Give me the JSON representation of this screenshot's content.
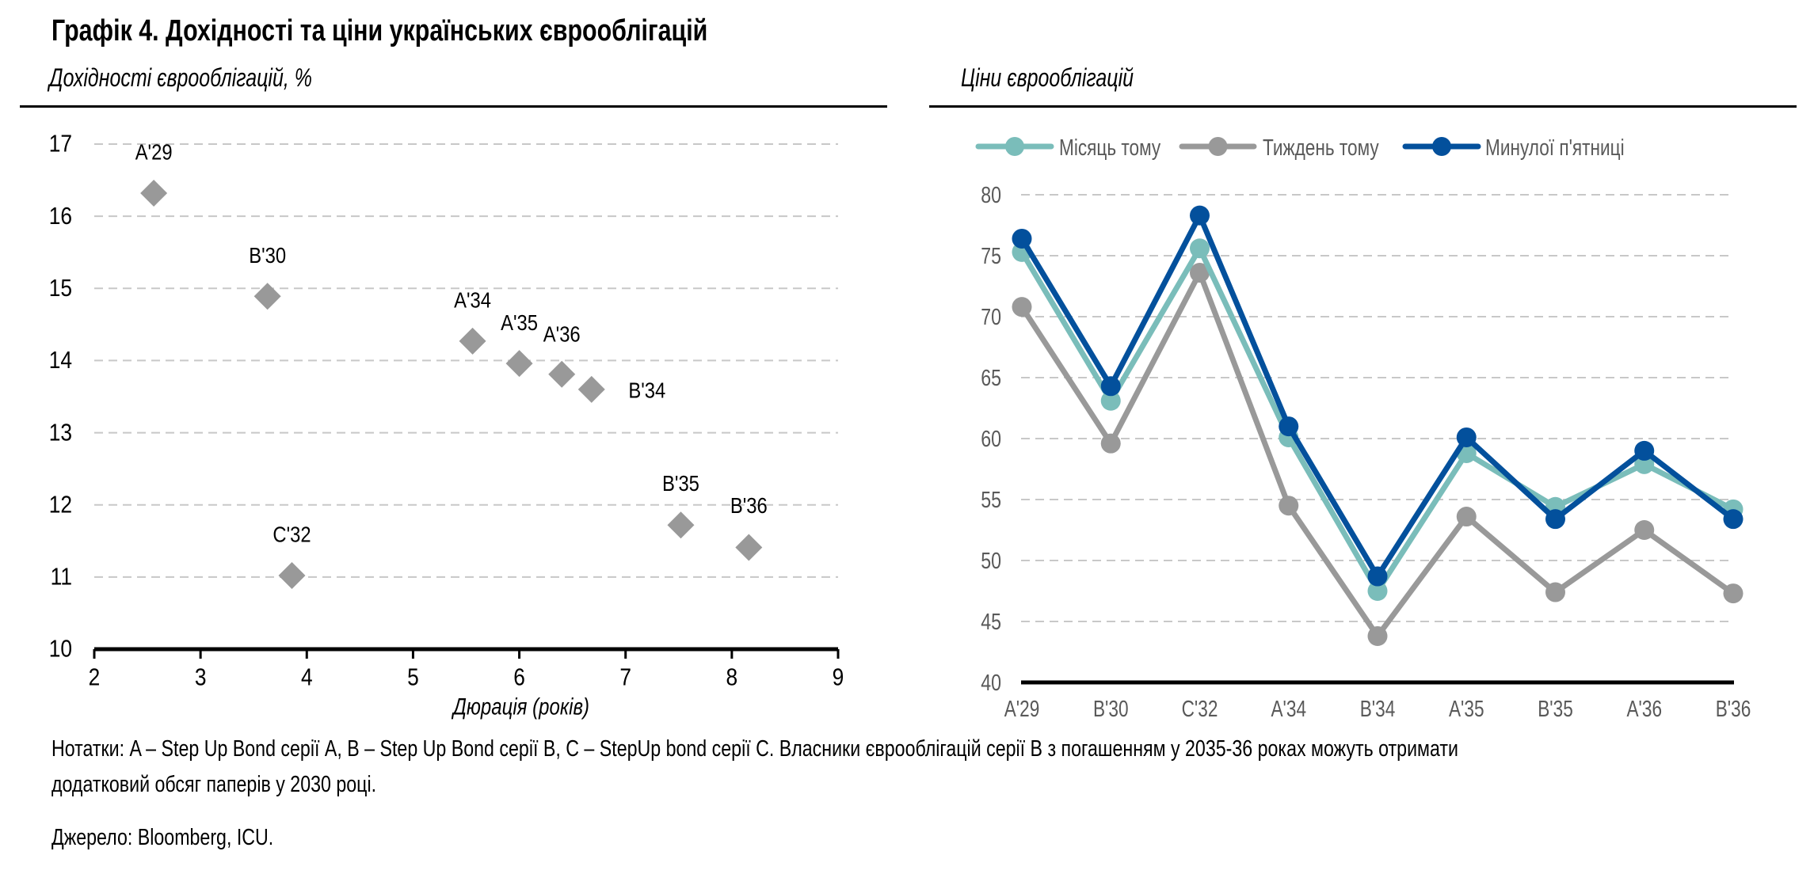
{
  "title": "Графік 4. Дохідності та ціни українських єврооблігацій",
  "notes": {
    "line1": "Нотатки: A – Step Up Bond серії A, B – Step Up Bond серії B, C – StepUp bond серії C. Власники єврооблігацій серії B з погашенням у 2035-36 роках можуть отримати",
    "line2": "додатковий обсяг паперів у 2030 році.",
    "source": "Джерело: Bloomberg, ICU."
  },
  "colors": {
    "diamond": "#999999",
    "month_ago": "#7ABDBA",
    "week_ago": "#999999",
    "last_friday": "#03509C",
    "grid": "#C8C8C8",
    "axis_text": "#595959"
  },
  "chart_data": [
    {
      "type": "scatter",
      "title": "Дохідності єврооблігацій, %",
      "xlabel": "Дюрація (років)",
      "ylabel": "",
      "xlim": [
        2,
        9
      ],
      "ylim": [
        10,
        17
      ],
      "xticks": [
        "2",
        "3",
        "4",
        "5",
        "6",
        "7",
        "8",
        "9"
      ],
      "yticks": [
        "10",
        "11",
        "12",
        "13",
        "14",
        "15",
        "16",
        "17"
      ],
      "grid": "horizontal dashed",
      "marker": "diamond",
      "points": [
        {
          "label": "A'29",
          "x": 2.56,
          "y": 16.32
        },
        {
          "label": "B'30",
          "x": 3.63,
          "y": 14.89
        },
        {
          "label": "C'32",
          "x": 3.86,
          "y": 11.02
        },
        {
          "label": "A'34",
          "x": 5.56,
          "y": 14.27
        },
        {
          "label": "A'35",
          "x": 6.0,
          "y": 13.96
        },
        {
          "label": "A'36",
          "x": 6.4,
          "y": 13.81
        },
        {
          "label": "B'34",
          "x": 6.68,
          "y": 13.6
        },
        {
          "label": "B'35",
          "x": 7.52,
          "y": 11.72
        },
        {
          "label": "B'36",
          "x": 8.16,
          "y": 11.41
        }
      ]
    },
    {
      "type": "line",
      "title": "Ціни єврооблігацій",
      "xlabel": "",
      "ylabel": "",
      "categories": [
        "A'29",
        "B'30",
        "C'32",
        "A'34",
        "B'34",
        "A'35",
        "B'35",
        "A'36",
        "B'36"
      ],
      "ylim": [
        40,
        80
      ],
      "yticks": [
        "40",
        "45",
        "50",
        "55",
        "60",
        "65",
        "70",
        "75",
        "80"
      ],
      "grid": "horizontal dashed",
      "legend": "top",
      "series": [
        {
          "name": "Місяць тому",
          "color_key": "month_ago",
          "values": [
            75.3,
            63.1,
            75.6,
            60.1,
            47.5,
            58.8,
            54.4,
            57.9,
            54.2
          ]
        },
        {
          "name": "Тиждень тому",
          "color_key": "week_ago",
          "values": [
            70.8,
            59.6,
            73.6,
            54.5,
            43.8,
            53.6,
            47.4,
            52.5,
            47.3
          ]
        },
        {
          "name": "Минулої п'ятниці",
          "color_key": "last_friday",
          "values": [
            76.4,
            64.3,
            78.3,
            61.0,
            48.7,
            60.1,
            53.4,
            59.0,
            53.4
          ]
        }
      ]
    }
  ]
}
